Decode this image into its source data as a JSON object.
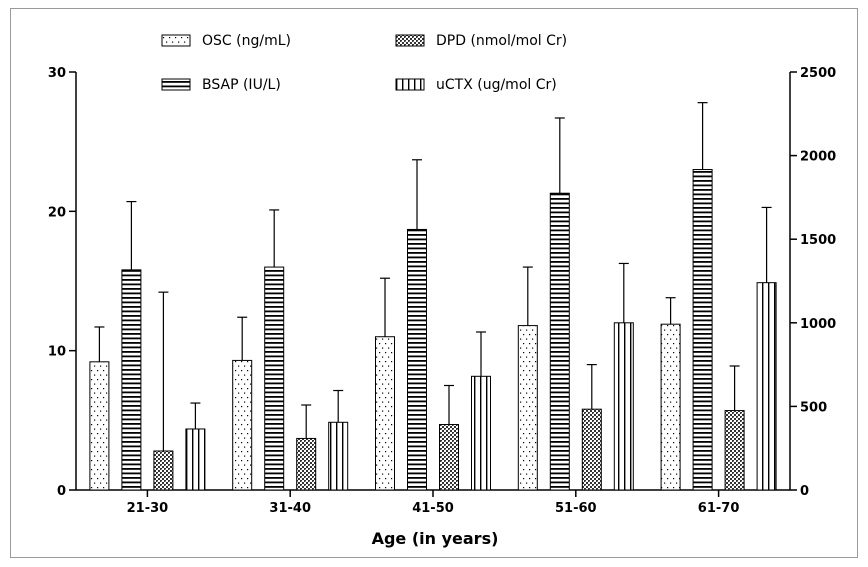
{
  "chart_data": {
    "type": "bar",
    "title": "",
    "xlabel": "Age (in years)",
    "ylabel": "",
    "y2label": "",
    "categories": [
      "21-30",
      "31-40",
      "41-50",
      "51-60",
      "61-70"
    ],
    "ylim": [
      0,
      30
    ],
    "y2lim": [
      0,
      2500
    ],
    "yticks": [
      0,
      10,
      20,
      30
    ],
    "y2ticks": [
      0,
      500,
      1000,
      1500,
      2000,
      2500
    ],
    "legend_position": "top",
    "grid": false,
    "series": [
      {
        "name": "OSC (ng/mL)",
        "axis": "left",
        "pattern": "dots",
        "values": [
          9.2,
          9.3,
          11.0,
          11.8,
          11.9
        ],
        "errors": [
          2.5,
          3.1,
          4.2,
          4.2,
          1.9
        ]
      },
      {
        "name": "BSAP (IU/L)",
        "axis": "left",
        "pattern": "horizontal-lines",
        "values": [
          15.8,
          16.0,
          18.7,
          21.3,
          23.0
        ],
        "errors": [
          4.9,
          4.1,
          5.0,
          5.4,
          4.8
        ]
      },
      {
        "name": "DPD (nmol/mol Cr)",
        "axis": "left",
        "pattern": "crosshatch",
        "values": [
          2.8,
          3.7,
          4.7,
          5.8,
          5.7
        ],
        "errors": [
          11.4,
          2.4,
          2.8,
          3.2,
          3.2
        ]
      },
      {
        "name": "uCTX (ug/mol Cr)",
        "axis": "right",
        "pattern": "vertical-lines",
        "values": [
          365,
          405,
          680,
          1000,
          1240
        ],
        "errors": [
          155,
          190,
          265,
          355,
          450
        ]
      }
    ]
  }
}
